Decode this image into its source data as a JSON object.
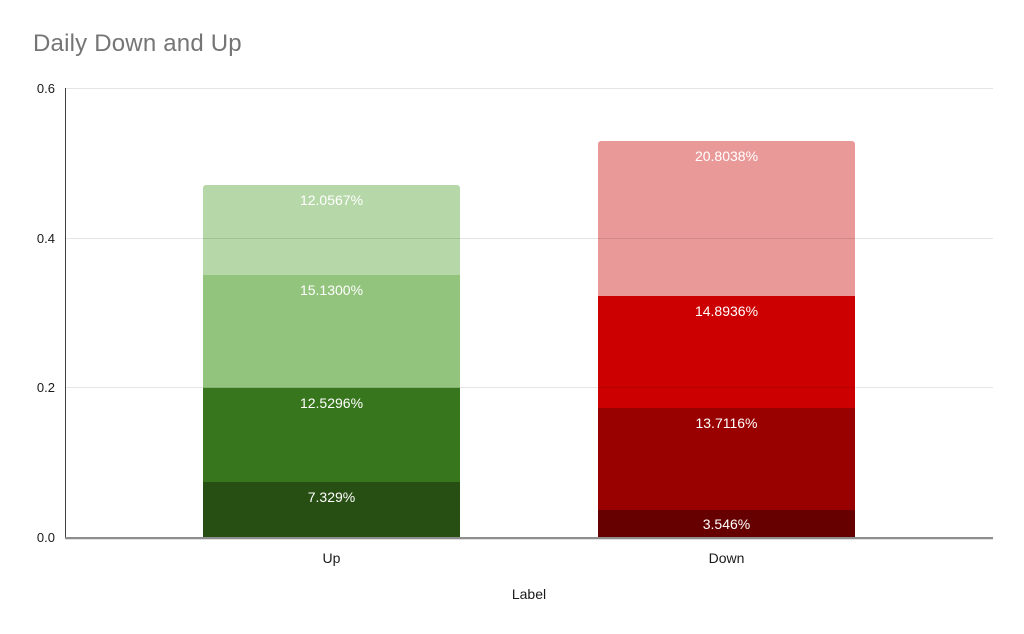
{
  "chart_data": {
    "type": "bar",
    "stacked": true,
    "title": "Daily Down and Up",
    "xlabel": "Label",
    "ylabel": "",
    "ylim": [
      0,
      0.6
    ],
    "yticks": [
      0,
      0.2,
      0.4,
      0.6
    ],
    "ytick_labels": [
      "0.0",
      "0.2",
      "0.4",
      "0.6"
    ],
    "grid": true,
    "legend": "none",
    "categories": [
      "Up",
      "Down"
    ],
    "bars": [
      {
        "category": "Up",
        "segments": [
          {
            "label": "7.329%",
            "value": 0.07329,
            "color": "#274e13"
          },
          {
            "label": "12.5296%",
            "value": 0.125296,
            "color": "#38761d"
          },
          {
            "label": "15.1300%",
            "value": 0.1513,
            "color": "#93c47d"
          },
          {
            "label": "12.0567%",
            "value": 0.120567,
            "color": "#b6d7a8"
          }
        ]
      },
      {
        "category": "Down",
        "segments": [
          {
            "label": "3.546%",
            "value": 0.03546,
            "color": "#660000"
          },
          {
            "label": "13.7116%",
            "value": 0.137116,
            "color": "#990000"
          },
          {
            "label": "14.8936%",
            "value": 0.148936,
            "color": "#cc0000"
          },
          {
            "label": "20.8038%",
            "value": 0.208038,
            "color": "#ea9999"
          }
        ]
      }
    ]
  },
  "colors": {
    "background": "#ffffff",
    "title_text": "#757575",
    "tick_text": "#1a1a1a",
    "category_text": "#1a1a1a",
    "axis_title_text": "#1a1a1a",
    "segment_label_text": "#ffffff",
    "gridline": "rgba(0,0,0,0.10)",
    "y_axis_line": "#424242",
    "baseline": "#8e8e8e"
  }
}
